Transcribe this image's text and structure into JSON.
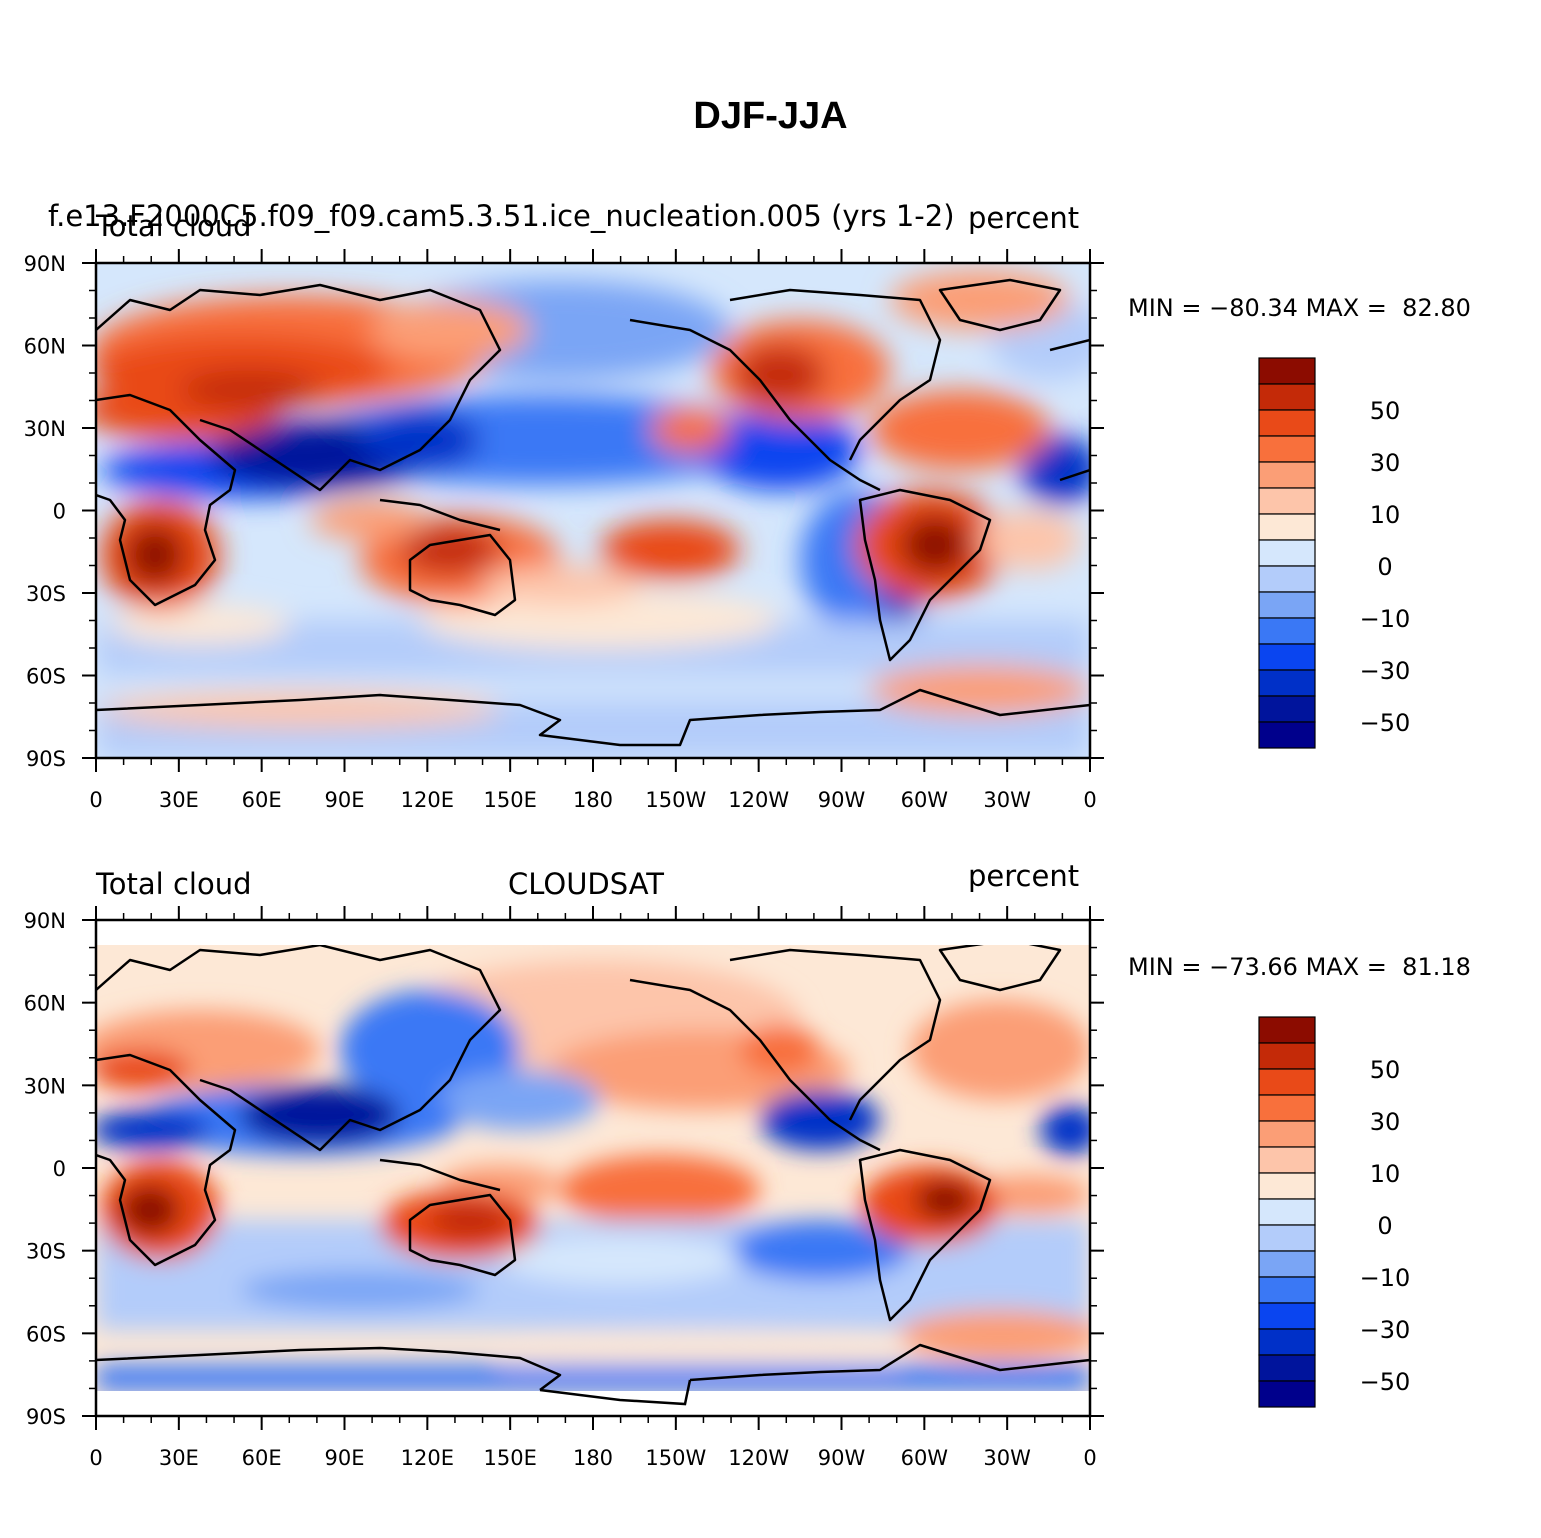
{
  "title": "DJF-JJA",
  "colorbar": {
    "colors": [
      "#00008c",
      "#00149c",
      "#0030c8",
      "#0a45f0",
      "#3a78f5",
      "#7aa5f5",
      "#b3ccfa",
      "#d5e7fc",
      "#fde8d6",
      "#fdc5aa",
      "#fb9e76",
      "#f8703c",
      "#e94a18",
      "#c42a08",
      "#8c0c00"
    ],
    "tick_labels": [
      "50",
      "30",
      "10",
      "0",
      "−10",
      "−30",
      "−50"
    ]
  },
  "lon_ticks": [
    "0",
    "30E",
    "60E",
    "90E",
    "120E",
    "150E",
    "180",
    "150W",
    "120W",
    "90W",
    "60W",
    "30W",
    "0"
  ],
  "lat_ticks": [
    "90N",
    "60N",
    "30N",
    "0",
    "30S",
    "60S",
    "90S"
  ],
  "panels": [
    {
      "left_label": "Total cloud",
      "center_label": "f.e13.F2000C5.f09_f09.cam5.3.51.ice_nucleation.005 (yrs 1-2)",
      "right_label": "percent",
      "min_label": "MIN =",
      "min_value": "−80.34",
      "max_label": "MAX =",
      "max_value": "82.80"
    },
    {
      "left_label": "Total cloud",
      "center_label": "CLOUDSAT",
      "right_label": "percent",
      "min_label": "MIN =",
      "min_value": "−73.66",
      "max_label": "MAX =",
      "max_value": "81.18"
    }
  ]
}
